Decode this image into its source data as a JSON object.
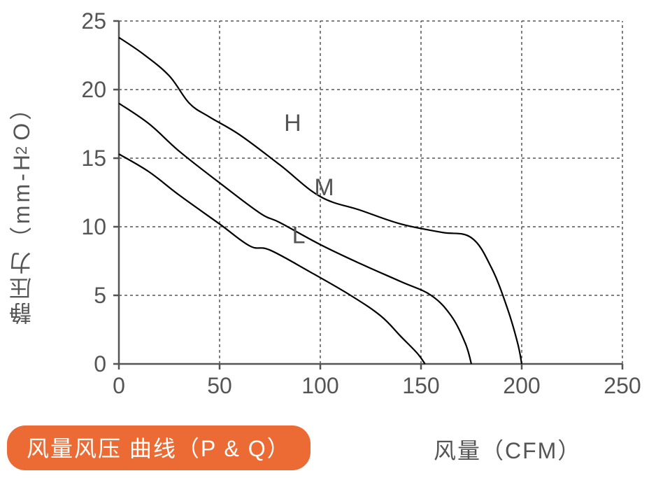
{
  "chart": {
    "type": "line",
    "y_label": "静压力（mm-H₂O）",
    "x_label": "风量（CFM）",
    "title_pill": "风量风压 曲线（P & Q）",
    "xlim": [
      0,
      250
    ],
    "ylim": [
      0,
      25
    ],
    "x_ticks": [
      0,
      50,
      100,
      150,
      200,
      250
    ],
    "y_ticks": [
      0,
      5,
      10,
      15,
      20,
      25
    ],
    "background_color": "#ffffff",
    "axis_color": "#555555",
    "grid_color": "#555555",
    "grid_dash": "4,4",
    "axis_width": 2.5,
    "grid_width": 1.5,
    "line_color": "#000000",
    "line_width": 2.2,
    "tick_font_size": 32,
    "label_font_size": 32,
    "pill_bg_color": "#ec6b34",
    "pill_text_color": "#ffffff",
    "series": [
      {
        "name": "H",
        "label_pos": {
          "x": 82,
          "y": 17
        },
        "points": [
          {
            "x": 0,
            "y": 23.8
          },
          {
            "x": 12,
            "y": 22.6
          },
          {
            "x": 25,
            "y": 21.0
          },
          {
            "x": 35,
            "y": 19.0
          },
          {
            "x": 45,
            "y": 18.0
          },
          {
            "x": 60,
            "y": 16.7
          },
          {
            "x": 80,
            "y": 14.5
          },
          {
            "x": 100,
            "y": 12.2
          },
          {
            "x": 120,
            "y": 11.2
          },
          {
            "x": 140,
            "y": 10.2
          },
          {
            "x": 160,
            "y": 9.6
          },
          {
            "x": 175,
            "y": 9.2
          },
          {
            "x": 185,
            "y": 7.0
          },
          {
            "x": 193,
            "y": 4.0
          },
          {
            "x": 198,
            "y": 1.5
          },
          {
            "x": 200,
            "y": 0.0
          }
        ]
      },
      {
        "name": "M",
        "label_pos": {
          "x": 97,
          "y": 12.3
        },
        "points": [
          {
            "x": 0,
            "y": 19.0
          },
          {
            "x": 15,
            "y": 17.5
          },
          {
            "x": 30,
            "y": 15.5
          },
          {
            "x": 50,
            "y": 13.2
          },
          {
            "x": 70,
            "y": 11.0
          },
          {
            "x": 80,
            "y": 10.3
          },
          {
            "x": 100,
            "y": 8.7
          },
          {
            "x": 120,
            "y": 7.3
          },
          {
            "x": 140,
            "y": 6.0
          },
          {
            "x": 155,
            "y": 5.0
          },
          {
            "x": 165,
            "y": 3.5
          },
          {
            "x": 172,
            "y": 1.5
          },
          {
            "x": 175,
            "y": 0.0
          }
        ]
      },
      {
        "name": "L",
        "label_pos": {
          "x": 86,
          "y": 8.8
        },
        "points": [
          {
            "x": 0,
            "y": 15.3
          },
          {
            "x": 15,
            "y": 14.0
          },
          {
            "x": 30,
            "y": 12.3
          },
          {
            "x": 50,
            "y": 10.2
          },
          {
            "x": 65,
            "y": 8.6
          },
          {
            "x": 75,
            "y": 8.3
          },
          {
            "x": 95,
            "y": 6.7
          },
          {
            "x": 115,
            "y": 5.0
          },
          {
            "x": 130,
            "y": 3.5
          },
          {
            "x": 140,
            "y": 2.0
          },
          {
            "x": 148,
            "y": 0.8
          },
          {
            "x": 152,
            "y": 0.0
          }
        ]
      }
    ]
  }
}
